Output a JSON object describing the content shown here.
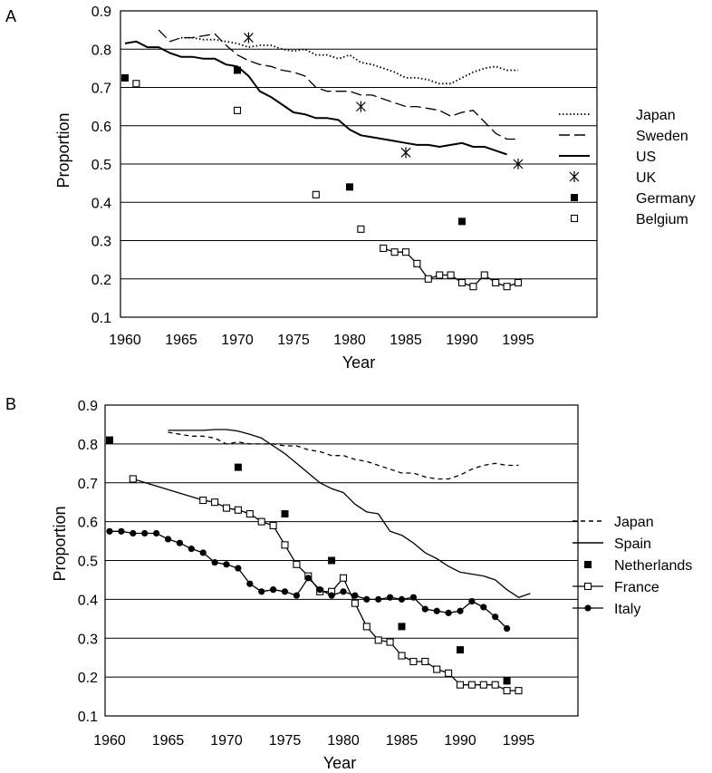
{
  "chart_data": [
    {
      "panel_label": "A",
      "type": "line",
      "xlabel": "Year",
      "ylabel": "Proportion",
      "xlim": [
        1959,
        1996
      ],
      "ylim": [
        0.1,
        0.9
      ],
      "x_ticks": [
        1960,
        1965,
        1970,
        1975,
        1980,
        1985,
        1990,
        1995
      ],
      "y_ticks": [
        0.1,
        0.2,
        0.3,
        0.4,
        0.5,
        0.6,
        0.7,
        0.8,
        0.9
      ],
      "grid": "horizontal",
      "legend": "right",
      "series": [
        {
          "name": "Japan",
          "style": "dotted",
          "color": "#000000",
          "x": [
            1965,
            1966,
            1967,
            1968,
            1969,
            1970,
            1971,
            1972,
            1973,
            1974,
            1975,
            1976,
            1977,
            1978,
            1979,
            1980,
            1981,
            1982,
            1983,
            1984,
            1985,
            1986,
            1987,
            1988,
            1989,
            1990,
            1991,
            1992,
            1993,
            1994,
            1995
          ],
          "y": [
            0.83,
            0.83,
            0.825,
            0.825,
            0.82,
            0.815,
            0.805,
            0.81,
            0.81,
            0.8,
            0.795,
            0.8,
            0.785,
            0.785,
            0.775,
            0.785,
            0.765,
            0.76,
            0.75,
            0.74,
            0.725,
            0.725,
            0.72,
            0.71,
            0.71,
            0.725,
            0.74,
            0.75,
            0.755,
            0.745,
            0.745
          ]
        },
        {
          "name": "Sweden",
          "style": "dashed",
          "color": "#000000",
          "x": [
            1963,
            1964,
            1965,
            1966,
            1967,
            1968,
            1969,
            1970,
            1971,
            1972,
            1973,
            1974,
            1975,
            1976,
            1977,
            1978,
            1979,
            1980,
            1981,
            1982,
            1983,
            1984,
            1985,
            1986,
            1987,
            1988,
            1989,
            1990,
            1991,
            1992,
            1993,
            1994,
            1995
          ],
          "y": [
            0.85,
            0.82,
            0.83,
            0.83,
            0.835,
            0.84,
            0.81,
            0.785,
            0.77,
            0.76,
            0.755,
            0.745,
            0.74,
            0.73,
            0.7,
            0.69,
            0.69,
            0.69,
            0.68,
            0.68,
            0.67,
            0.66,
            0.65,
            0.65,
            0.645,
            0.64,
            0.625,
            0.635,
            0.64,
            0.61,
            0.58,
            0.565,
            0.565
          ]
        },
        {
          "name": "US",
          "style": "solid",
          "color": "#000000",
          "x": [
            1960,
            1961,
            1962,
            1963,
            1964,
            1965,
            1966,
            1967,
            1968,
            1969,
            1970,
            1971,
            1972,
            1973,
            1974,
            1975,
            1976,
            1977,
            1978,
            1979,
            1980,
            1981,
            1982,
            1983,
            1984,
            1985,
            1986,
            1987,
            1988,
            1989,
            1990,
            1991,
            1992,
            1993,
            1994
          ],
          "y": [
            0.815,
            0.82,
            0.805,
            0.805,
            0.79,
            0.78,
            0.78,
            0.775,
            0.775,
            0.76,
            0.755,
            0.73,
            0.69,
            0.675,
            0.655,
            0.635,
            0.63,
            0.62,
            0.62,
            0.615,
            0.59,
            0.575,
            0.57,
            0.565,
            0.56,
            0.555,
            0.55,
            0.55,
            0.545,
            0.55,
            0.555,
            0.545,
            0.545,
            0.535,
            0.525
          ]
        },
        {
          "name": "UK",
          "style": "markers",
          "marker": "asterisk",
          "color": "#000000",
          "x": [
            1971,
            1981,
            1985,
            1995
          ],
          "y": [
            0.83,
            0.65,
            0.53,
            0.5
          ]
        },
        {
          "name": "Germany",
          "style": "markers",
          "marker": "filled-square",
          "color": "#000000",
          "x": [
            1960,
            1970,
            1980,
            1990
          ],
          "y": [
            0.725,
            0.745,
            0.44,
            0.35
          ]
        },
        {
          "name": "Belgium",
          "style": "markers",
          "marker": "open-square",
          "color": "#000000",
          "x": [
            1961,
            1970,
            1977,
            1981
          ],
          "y": [
            0.71,
            0.64,
            0.42,
            0.33
          ]
        },
        {
          "style": "line-markers",
          "marker": "open-square",
          "color": "#000000",
          "x": [
            1983,
            1984,
            1985,
            1986,
            1987,
            1988,
            1989,
            1990,
            1991,
            1992,
            1993,
            1994,
            1995
          ],
          "y": [
            0.28,
            0.27,
            0.27,
            0.24,
            0.2,
            0.21,
            0.21,
            0.19,
            0.18,
            0.21,
            0.19,
            0.18,
            0.19
          ]
        }
      ]
    },
    {
      "panel_label": "B",
      "type": "line",
      "xlabel": "Year",
      "ylabel": "Proportion",
      "xlim": [
        1959,
        1996
      ],
      "ylim": [
        0.1,
        0.9
      ],
      "x_ticks": [
        1960,
        1965,
        1970,
        1975,
        1980,
        1985,
        1990,
        1995
      ],
      "y_ticks": [
        0.1,
        0.2,
        0.3,
        0.4,
        0.5,
        0.6,
        0.7,
        0.8,
        0.9
      ],
      "grid": "horizontal",
      "legend": "right",
      "series": [
        {
          "name": "Japan",
          "style": "dashed",
          "color": "#000000",
          "x": [
            1965,
            1966,
            1967,
            1968,
            1969,
            1970,
            1971,
            1972,
            1973,
            1974,
            1975,
            1976,
            1977,
            1978,
            1979,
            1980,
            1981,
            1982,
            1983,
            1984,
            1985,
            1986,
            1987,
            1988,
            1989,
            1990,
            1991,
            1992,
            1993,
            1994,
            1995
          ],
          "y": [
            0.83,
            0.825,
            0.82,
            0.82,
            0.815,
            0.8,
            0.805,
            0.8,
            0.8,
            0.8,
            0.795,
            0.795,
            0.785,
            0.78,
            0.77,
            0.77,
            0.76,
            0.755,
            0.745,
            0.735,
            0.725,
            0.725,
            0.715,
            0.71,
            0.71,
            0.72,
            0.735,
            0.745,
            0.75,
            0.745,
            0.745
          ]
        },
        {
          "name": "Spain",
          "style": "solid",
          "color": "#000000",
          "x": [
            1965,
            1966,
            1967,
            1968,
            1969,
            1970,
            1971,
            1972,
            1973,
            1974,
            1975,
            1976,
            1977,
            1978,
            1979,
            1980,
            1981,
            1982,
            1983,
            1984,
            1985,
            1986,
            1987,
            1988,
            1989,
            1990,
            1991,
            1992,
            1993,
            1994,
            1995,
            1996
          ],
          "y": [
            0.835,
            0.835,
            0.835,
            0.835,
            0.837,
            0.837,
            0.833,
            0.825,
            0.815,
            0.795,
            0.775,
            0.75,
            0.725,
            0.7,
            0.685,
            0.675,
            0.645,
            0.625,
            0.62,
            0.575,
            0.565,
            0.545,
            0.52,
            0.505,
            0.485,
            0.47,
            0.465,
            0.46,
            0.45,
            0.425,
            0.405,
            0.415
          ]
        },
        {
          "name": "Netherlands",
          "style": "markers",
          "marker": "filled-square",
          "color": "#000000",
          "x": [
            1960,
            1971,
            1975,
            1979,
            1985,
            1990,
            1994
          ],
          "y": [
            0.81,
            0.74,
            0.62,
            0.5,
            0.33,
            0.27,
            0.19
          ]
        },
        {
          "name": "France",
          "style": "line-markers",
          "marker": "open-square",
          "color": "#000000",
          "x": [
            1962,
            1968,
            1969,
            1970,
            1971,
            1972,
            1973,
            1974,
            1975,
            1976,
            1977,
            1978,
            1979,
            1980,
            1981,
            1982,
            1983,
            1984,
            1985,
            1986,
            1987,
            1988,
            1989,
            1990,
            1991,
            1992,
            1993,
            1994,
            1995
          ],
          "y": [
            0.71,
            0.655,
            0.65,
            0.635,
            0.63,
            0.62,
            0.6,
            0.59,
            0.54,
            0.49,
            0.46,
            0.42,
            0.42,
            0.455,
            0.39,
            0.33,
            0.295,
            0.29,
            0.255,
            0.24,
            0.24,
            0.22,
            0.21,
            0.18,
            0.18,
            0.18,
            0.18,
            0.165,
            0.165
          ]
        },
        {
          "name": "Italy",
          "style": "line-markers",
          "marker": "filled-circle",
          "color": "#000000",
          "x": [
            1960,
            1961,
            1962,
            1963,
            1964,
            1965,
            1966,
            1967,
            1968,
            1969,
            1970,
            1971,
            1972,
            1973,
            1974,
            1975,
            1976,
            1977,
            1978,
            1979,
            1980,
            1981,
            1982,
            1983,
            1984,
            1985,
            1986,
            1987,
            1988,
            1989,
            1990,
            1991,
            1992,
            1993,
            1994
          ],
          "y": [
            0.575,
            0.575,
            0.57,
            0.57,
            0.57,
            0.555,
            0.545,
            0.53,
            0.52,
            0.495,
            0.49,
            0.48,
            0.44,
            0.42,
            0.425,
            0.42,
            0.41,
            0.455,
            0.425,
            0.41,
            0.42,
            0.41,
            0.4,
            0.4,
            0.405,
            0.4,
            0.405,
            0.375,
            0.37,
            0.365,
            0.37,
            0.395,
            0.38,
            0.355,
            0.325
          ]
        }
      ]
    }
  ]
}
